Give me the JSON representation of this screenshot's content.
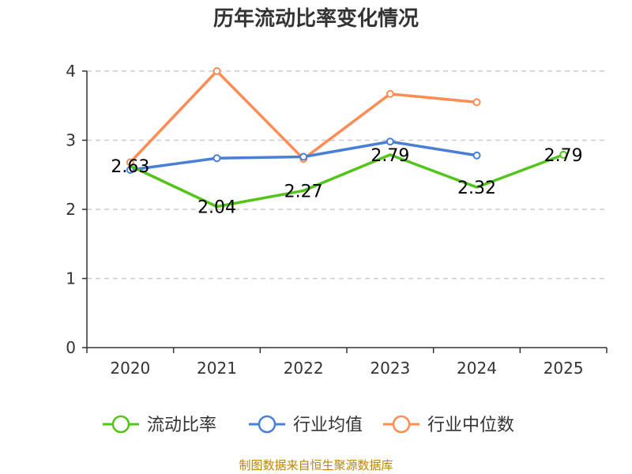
{
  "chart_data": {
    "type": "line",
    "title": "历年流动比率变化情况",
    "categories": [
      "2020",
      "2021",
      "2022",
      "2023",
      "2024",
      "2025"
    ],
    "ylim": [
      0,
      4
    ],
    "yticks": [
      0,
      1,
      2,
      3,
      4
    ],
    "grid": true,
    "legend_position": "bottom",
    "series": [
      {
        "name": "流动比率",
        "color": "#52c41a",
        "values": [
          2.63,
          2.04,
          2.27,
          2.79,
          2.32,
          2.79
        ],
        "labels": [
          "2.63",
          "2.04",
          "2.27",
          "2.79",
          "2.32",
          "2.79"
        ],
        "markers_at": [
          5
        ]
      },
      {
        "name": "行业均值",
        "color": "#4a7fd6",
        "values": [
          2.57,
          2.74,
          2.76,
          2.98,
          2.78,
          null
        ]
      },
      {
        "name": "行业中位数",
        "color": "#ff8c55",
        "values": [
          2.68,
          4.0,
          2.73,
          3.67,
          3.55,
          null
        ]
      }
    ],
    "source": "制图数据来自恒生聚源数据库"
  }
}
